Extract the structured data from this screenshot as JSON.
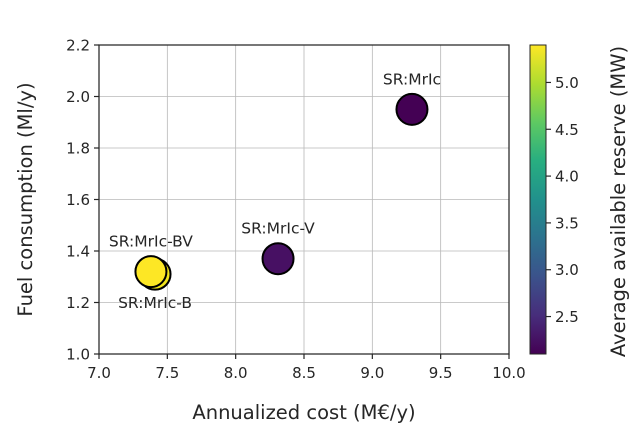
{
  "chart_data": {
    "type": "scatter",
    "xlabel": "Annualized cost (M€/y)",
    "ylabel": "Fuel consumption (Ml/y)",
    "xlim": [
      7.0,
      10.0
    ],
    "ylim": [
      1.0,
      2.2
    ],
    "xticks": [
      7.0,
      7.5,
      8.0,
      8.5,
      9.0,
      9.5,
      10.0
    ],
    "xtick_labels": [
      "7.0",
      "7.5",
      "8.0",
      "8.5",
      "9.0",
      "9.5",
      "10.0"
    ],
    "yticks": [
      1.0,
      1.2,
      1.4,
      1.6,
      1.8,
      2.0,
      2.2
    ],
    "ytick_labels": [
      "1.0",
      "1.2",
      "1.4",
      "1.6",
      "1.8",
      "2.0",
      "2.2"
    ],
    "grid": true,
    "colorbar": {
      "label": "Average available reserve (MW)",
      "colormap": "viridis",
      "range": [
        2.1,
        5.4
      ],
      "ticks": [
        2.5,
        3.0,
        3.5,
        4.0,
        4.5,
        5.0
      ],
      "tick_labels": [
        "2.5",
        "3.0",
        "3.5",
        "4.0",
        "4.5",
        "5.0"
      ]
    },
    "points": [
      {
        "label": "SR:MrIc",
        "x": 9.29,
        "y": 1.95,
        "value": 2.15,
        "color": "#440154",
        "label_pos": "above"
      },
      {
        "label": "SR:MrIc-V",
        "x": 8.31,
        "y": 1.37,
        "value": 2.3,
        "color": "#471063",
        "label_pos": "above"
      },
      {
        "label": "SR:MrIc-B",
        "x": 7.41,
        "y": 1.31,
        "value": 5.35,
        "color": "#f1e51d",
        "label_pos": "below"
      },
      {
        "label": "SR:MrIc-BV",
        "x": 7.38,
        "y": 1.32,
        "value": 5.4,
        "color": "#fde725",
        "label_pos": "above"
      }
    ]
  }
}
